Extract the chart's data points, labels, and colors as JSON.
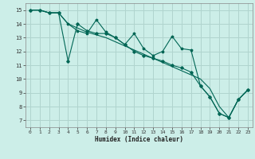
{
  "xlabel": "Humidex (Indice chaleur)",
  "bg_color": "#cceee8",
  "grid_color": "#b0d4ce",
  "line_color": "#006655",
  "xlim": [
    -0.5,
    23.5
  ],
  "ylim": [
    6.5,
    15.5
  ],
  "xticks": [
    0,
    1,
    2,
    3,
    4,
    5,
    6,
    7,
    8,
    9,
    10,
    11,
    12,
    13,
    14,
    15,
    16,
    17,
    18,
    19,
    20,
    21,
    22,
    23
  ],
  "yticks": [
    7,
    8,
    9,
    10,
    11,
    12,
    13,
    14,
    15
  ],
  "line1_x": [
    0,
    1,
    2,
    3,
    4,
    5,
    6,
    7,
    8,
    9,
    10,
    11,
    12,
    13,
    14,
    15,
    16,
    17,
    18,
    19,
    20,
    21,
    22,
    23
  ],
  "line1_y": [
    15.0,
    15.0,
    14.8,
    14.8,
    14.0,
    13.5,
    13.3,
    14.3,
    13.4,
    13.0,
    12.5,
    13.3,
    12.2,
    11.7,
    12.0,
    13.1,
    12.2,
    12.1,
    9.5,
    8.7,
    7.5,
    7.2,
    8.5,
    9.2
  ],
  "line2_x": [
    0,
    1,
    2,
    3,
    4,
    5,
    6,
    7,
    8,
    9,
    10,
    11,
    12,
    13,
    14,
    15,
    16,
    17,
    18,
    19,
    20,
    21,
    22,
    23
  ],
  "line2_y": [
    15.0,
    15.0,
    14.8,
    14.8,
    11.3,
    14.0,
    13.5,
    13.3,
    13.3,
    13.0,
    12.5,
    12.0,
    11.7,
    11.5,
    11.3,
    11.0,
    10.8,
    10.5,
    9.5,
    8.7,
    7.5,
    7.2,
    8.5,
    9.2
  ],
  "line3_x": [
    0,
    1,
    2,
    3,
    4,
    5,
    6,
    7,
    8,
    9,
    10,
    11,
    12,
    13,
    14,
    15,
    16,
    17,
    18,
    19,
    20,
    21,
    22,
    23
  ],
  "line3_y": [
    15.0,
    15.0,
    14.8,
    14.8,
    14.0,
    13.7,
    13.4,
    13.2,
    13.0,
    12.7,
    12.4,
    12.1,
    11.8,
    11.5,
    11.2,
    10.9,
    10.6,
    10.3,
    10.0,
    9.3,
    8.0,
    7.2,
    8.5,
    9.2
  ]
}
